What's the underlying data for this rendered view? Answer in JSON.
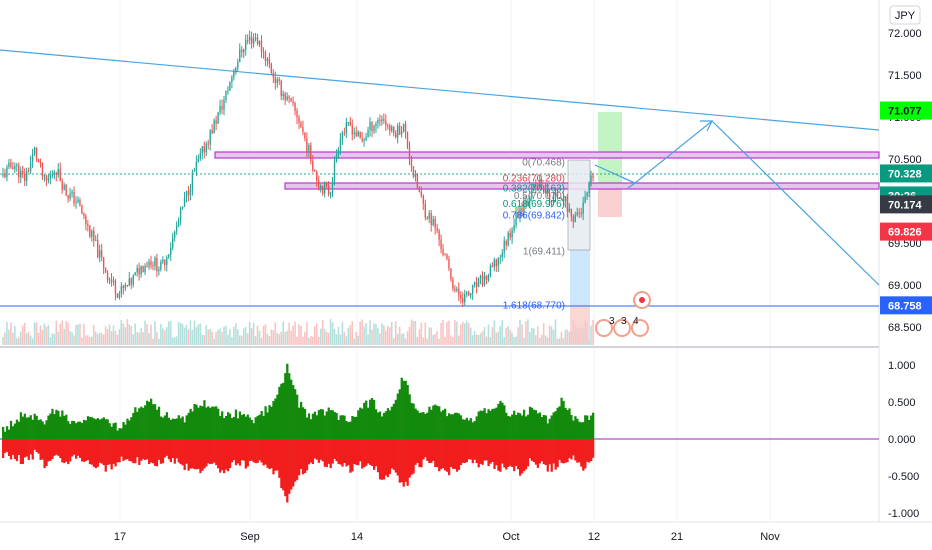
{
  "currency": "JPY",
  "colors": {
    "up": "#26a69a",
    "down": "#ef5350",
    "trendline": "#4aa3df",
    "zone_border": "#b43cc8",
    "zone_fill": "#e8c4f0",
    "fib_gray": "#787b86",
    "fib_red": "#f23645",
    "fib_green": "#089981",
    "fib_blue": "#2962ff",
    "osc_pos": "#138a0c",
    "osc_neg": "#f21d1d",
    "zero_line": "#9c27b0"
  },
  "price_badges": [
    {
      "value": "71.077",
      "bg": "#00ff00",
      "fg": "#131722"
    },
    {
      "value": "70.328",
      "bg": "#089981",
      "fg": "#ffffff"
    },
    {
      "value": "30:26",
      "bg": "#089981",
      "fg": "#ffffff"
    },
    {
      "value": "70.174",
      "bg": "#363a45",
      "fg": "#ffffff"
    },
    {
      "value": "69.826",
      "bg": "#f23645",
      "fg": "#ffffff"
    },
    {
      "value": "68.758",
      "bg": "#2962ff",
      "fg": "#ffffff"
    }
  ],
  "fib_labels": [
    {
      "text": "0(70.468)",
      "color": "#787b86"
    },
    {
      "text": "0.236(70.280)",
      "color": "#f23645"
    },
    {
      "text": "0.382(70.163)",
      "color": "#089981"
    },
    {
      "text": "0.5(70.070)",
      "color": "#787b86"
    },
    {
      "text": "0.618(69.976)",
      "color": "#089981"
    },
    {
      "text": "0.786(69.842)",
      "color": "#2962ff"
    },
    {
      "text": "1(69.411)",
      "color": "#787b86"
    },
    {
      "text": "1.618(68.770)",
      "color": "#2962ff"
    }
  ],
  "event_markers": [
    "3",
    "3",
    "4"
  ],
  "chart_data": [
    {
      "type": "candlestick",
      "title": "",
      "x_ticks": [
        "17",
        "Sep",
        "14",
        "Oct",
        "12",
        "21",
        "Nov"
      ],
      "y_ticks": [
        "72.000",
        "71.500",
        "71.000",
        "70.500",
        "70.000",
        "69.500",
        "69.000",
        "68.500"
      ],
      "ylim": [
        68.5,
        72.0
      ],
      "series": [
        {
          "name": "",
          "values": [
            70.3,
            70.45,
            70.25,
            70.6,
            70.2,
            70.4,
            70.1,
            70.0,
            69.7,
            69.4,
            69.1,
            68.9,
            69.0,
            69.2,
            69.3,
            69.2,
            69.5,
            69.9,
            70.3,
            70.6,
            70.9,
            71.2,
            71.6,
            71.9,
            71.95,
            71.7,
            71.4,
            71.2,
            71.0,
            70.6,
            70.2,
            70.1,
            70.8,
            70.9,
            70.7,
            70.9,
            71.0,
            70.8,
            70.9,
            70.3,
            69.9,
            69.7,
            69.3,
            68.9,
            68.85,
            69.0,
            69.1,
            69.3,
            69.6,
            69.9,
            70.1,
            70.2,
            70.0,
            70.1,
            69.8,
            69.9,
            70.3
          ]
        }
      ],
      "fib_levels": [
        {
          "ratio": 0,
          "price": 70.468
        },
        {
          "ratio": 0.236,
          "price": 70.28
        },
        {
          "ratio": 0.382,
          "price": 70.163
        },
        {
          "ratio": 0.5,
          "price": 70.07
        },
        {
          "ratio": 0.618,
          "price": 69.976
        },
        {
          "ratio": 0.786,
          "price": 69.842
        },
        {
          "ratio": 1,
          "price": 69.411
        },
        {
          "ratio": 1.618,
          "price": 68.77
        }
      ],
      "horizontal_lines": [
        68.758
      ],
      "last_price": 70.328
    },
    {
      "type": "area",
      "title": "",
      "y_ticks": [
        "1.000",
        "0.500",
        "0.000",
        "-0.500",
        "-1.000"
      ],
      "ylim": [
        -1.0,
        1.0
      ],
      "series": [
        {
          "name": "",
          "values": [
            0.15,
            0.2,
            0.35,
            0.3,
            0.25,
            0.4,
            0.3,
            0.2,
            0.25,
            0.3,
            0.2,
            0.15,
            0.3,
            0.45,
            0.5,
            0.35,
            0.3,
            0.25,
            0.4,
            0.5,
            0.45,
            0.3,
            0.35,
            0.3,
            0.25,
            0.4,
            0.55,
            1.0,
            0.5,
            0.3,
            0.35,
            0.4,
            0.3,
            0.25,
            0.45,
            0.5,
            0.35,
            0.4,
            0.85,
            0.4,
            0.35,
            0.45,
            0.35,
            0.3,
            0.25,
            0.3,
            0.4,
            0.5,
            0.35,
            0.3,
            0.4,
            0.3,
            0.25,
            0.55,
            0.3,
            0.25,
            0.3
          ]
        },
        {
          "name": "",
          "values": [
            -0.2,
            -0.25,
            -0.3,
            -0.2,
            -0.35,
            -0.25,
            -0.3,
            -0.2,
            -0.3,
            -0.35,
            -0.4,
            -0.3,
            -0.25,
            -0.3,
            -0.35,
            -0.3,
            -0.25,
            -0.35,
            -0.45,
            -0.4,
            -0.35,
            -0.5,
            -0.3,
            -0.35,
            -0.3,
            -0.4,
            -0.45,
            -0.85,
            -0.5,
            -0.35,
            -0.3,
            -0.35,
            -0.3,
            -0.4,
            -0.35,
            -0.3,
            -0.6,
            -0.35,
            -0.7,
            -0.4,
            -0.3,
            -0.35,
            -0.45,
            -0.4,
            -0.3,
            -0.35,
            -0.3,
            -0.4,
            -0.35,
            -0.45,
            -0.3,
            -0.35,
            -0.4,
            -0.3,
            -0.25,
            -0.4,
            -0.3
          ]
        }
      ]
    }
  ]
}
